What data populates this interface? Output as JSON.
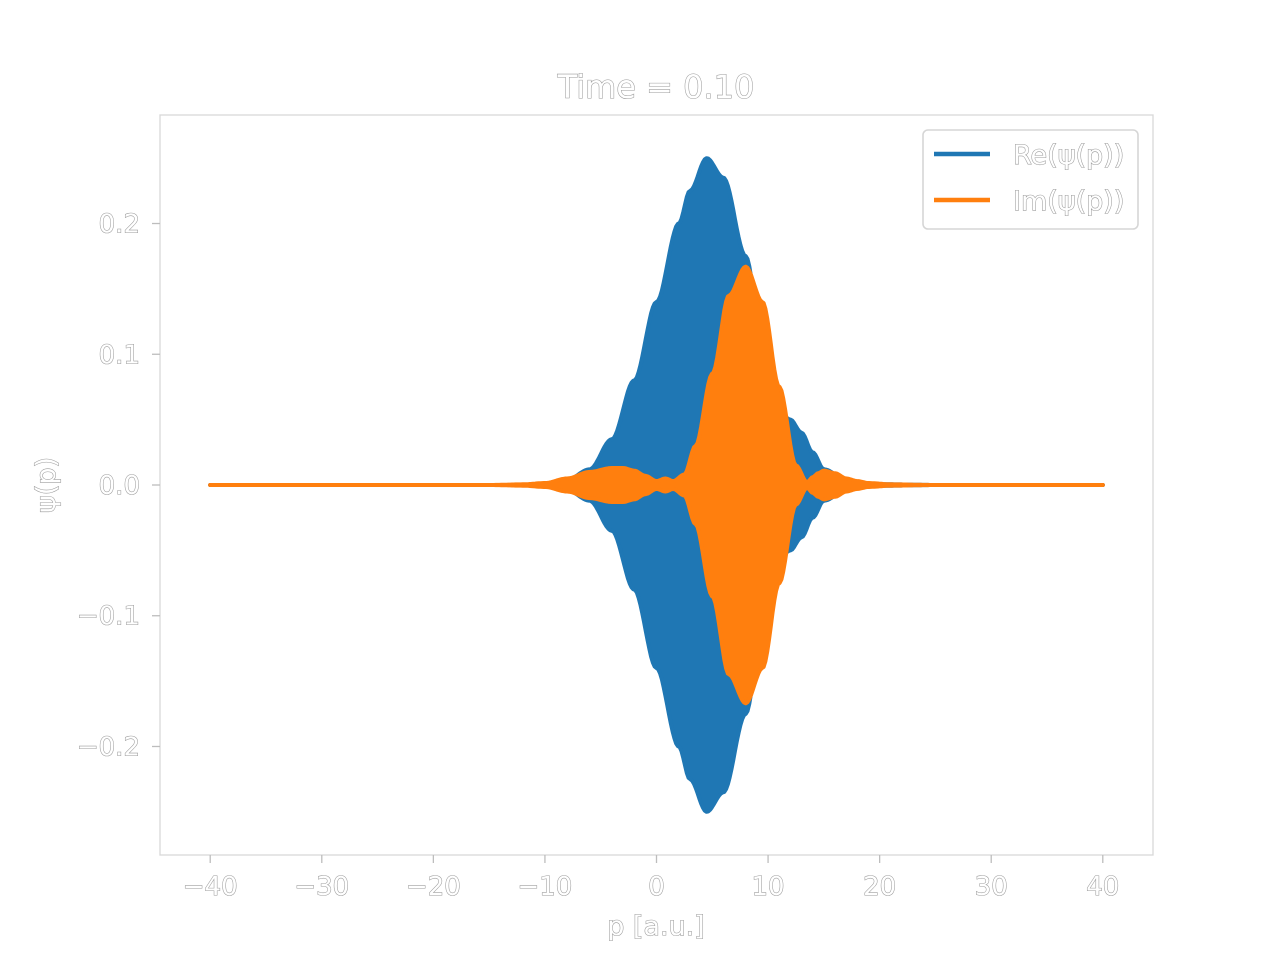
{
  "chart_data": {
    "type": "line",
    "title": "Time = 0.10",
    "xlabel": "p [a.u.]",
    "ylabel": "ψ(p)",
    "xlim": [
      -44.5,
      44.5
    ],
    "ylim": [
      -0.283,
      0.283
    ],
    "xticks": [
      -40,
      -30,
      -20,
      -10,
      0,
      10,
      20,
      30,
      40
    ],
    "xtick_labels": [
      "−40",
      "−30",
      "−20",
      "−10",
      "0",
      "10",
      "20",
      "30",
      "40"
    ],
    "yticks": [
      -0.2,
      -0.1,
      0.0,
      0.1,
      0.2
    ],
    "ytick_labels": [
      "−0.2",
      "−0.1",
      "0.0",
      "0.1",
      "0.2"
    ],
    "grid": false,
    "legend_position": "upper-right",
    "x_range": [
      -40,
      40
    ],
    "series": [
      {
        "name": "Re(ψ(p))",
        "color": "#1f77b4",
        "rendering": "filled-oscillation-envelope",
        "envelope": {
          "x": [
            -40,
            -20,
            -12,
            -10,
            -8,
            -6,
            -4,
            -2,
            0,
            2,
            3,
            4.5,
            6,
            8,
            9.5,
            10.5,
            11.5,
            12,
            13,
            14,
            15,
            17,
            19,
            21,
            25,
            40
          ],
          "y": [
            0,
            0,
            0,
            0.001,
            0.004,
            0.012,
            0.035,
            0.08,
            0.14,
            0.2,
            0.225,
            0.25,
            0.235,
            0.175,
            0.11,
            0.06,
            0.052,
            0.05,
            0.04,
            0.025,
            0.012,
            0.004,
            0.001,
            0.0005,
            0,
            0
          ]
        }
      },
      {
        "name": "Im(ψ(p))",
        "color": "#ff7f0e",
        "rendering": "filled-oscillation-envelope",
        "envelope": {
          "x": [
            -40,
            -15,
            -12,
            -10,
            -8,
            -6,
            -4,
            -3,
            -2,
            -1,
            0,
            0.8,
            1.5,
            2.5,
            3.5,
            5,
            6.5,
            8,
            9.5,
            11,
            12.5,
            13.5,
            14,
            14.5,
            15,
            16,
            17,
            18,
            19,
            21,
            25,
            40
          ],
          "y": [
            0,
            0,
            0.0005,
            0.0015,
            0.005,
            0.01,
            0.013,
            0.013,
            0.011,
            0.007,
            0.003,
            0.005,
            0.003,
            0.008,
            0.03,
            0.085,
            0.145,
            0.167,
            0.14,
            0.075,
            0.015,
            0.002,
            0.006,
            0.009,
            0.011,
            0.009,
            0.005,
            0.003,
            0.0015,
            0.0005,
            0,
            0
          ]
        }
      }
    ]
  }
}
